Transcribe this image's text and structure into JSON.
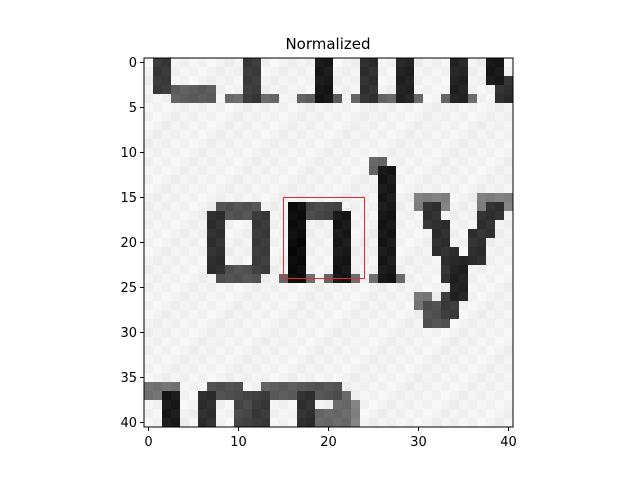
{
  "chart_data": {
    "type": "heatmap",
    "title": "Normalized",
    "xlabel": "",
    "ylabel": "",
    "image_size": [
      41,
      41
    ],
    "xlim": [
      -0.5,
      40.5
    ],
    "ylim": [
      40.5,
      -0.5
    ],
    "x_ticks": [
      0,
      10,
      20,
      30,
      40
    ],
    "y_ticks": [
      0,
      5,
      10,
      15,
      20,
      25,
      30,
      35,
      40
    ],
    "colormap": "gray",
    "grid": false,
    "content": "grayscale scan of a printed word 'only' with fragments of text lines above and below",
    "highlight_box": {
      "x0": 15,
      "y0": 15,
      "x1": 24,
      "y1": 24,
      "color": "#e8272a"
    }
  }
}
